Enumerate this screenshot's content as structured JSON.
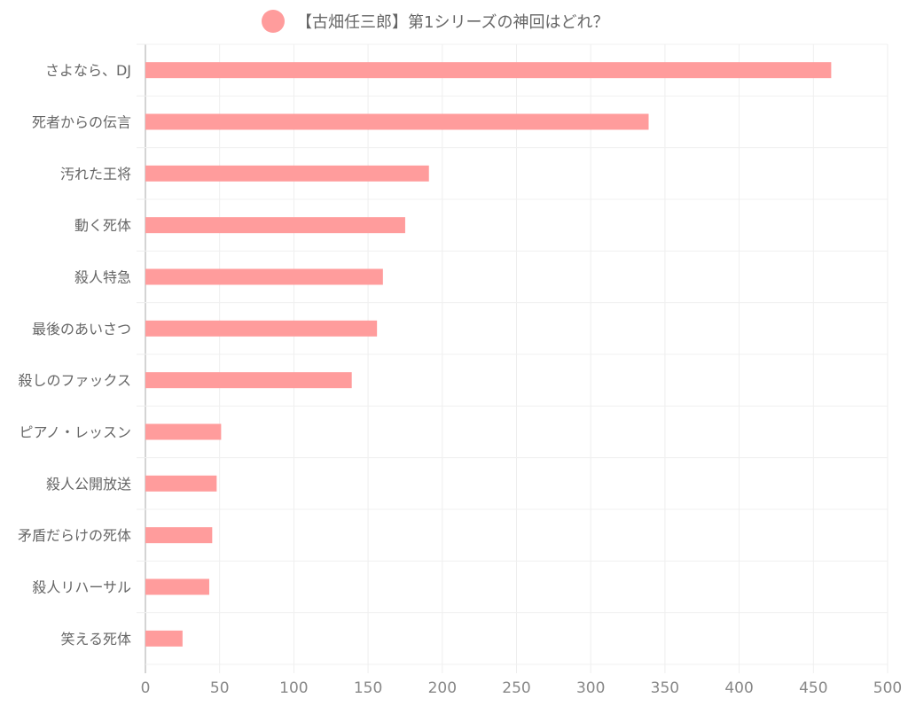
{
  "chart_data": {
    "type": "bar",
    "orientation": "horizontal",
    "title": "",
    "legend": {
      "position": "top",
      "entries": [
        "【古畑任三郎】第1シリーズの神回はどれ？"
      ]
    },
    "series": [
      {
        "name": "【古畑任三郎】第1シリーズの神回はどれ？",
        "color": "#ff9c9c",
        "values": [
          462,
          339,
          191,
          175,
          160,
          156,
          139,
          51,
          48,
          45,
          43,
          25
        ]
      }
    ],
    "categories": [
      "さよなら、DJ",
      "死者からの伝言",
      "汚れた王将",
      "動く死体",
      "殺人特急",
      "最後のあいさつ",
      "殺しのファックス",
      "ピアノ・レッスン",
      "殺人公開放送",
      "矛盾だらけの死体",
      "殺人リハーサル",
      "笑える死体"
    ],
    "xlim": [
      0,
      500
    ],
    "xticks": [
      "0",
      "50",
      "100",
      "150",
      "200",
      "250",
      "300",
      "350",
      "400",
      "450",
      "500"
    ],
    "grid": true,
    "xlabel": "",
    "ylabel": ""
  }
}
